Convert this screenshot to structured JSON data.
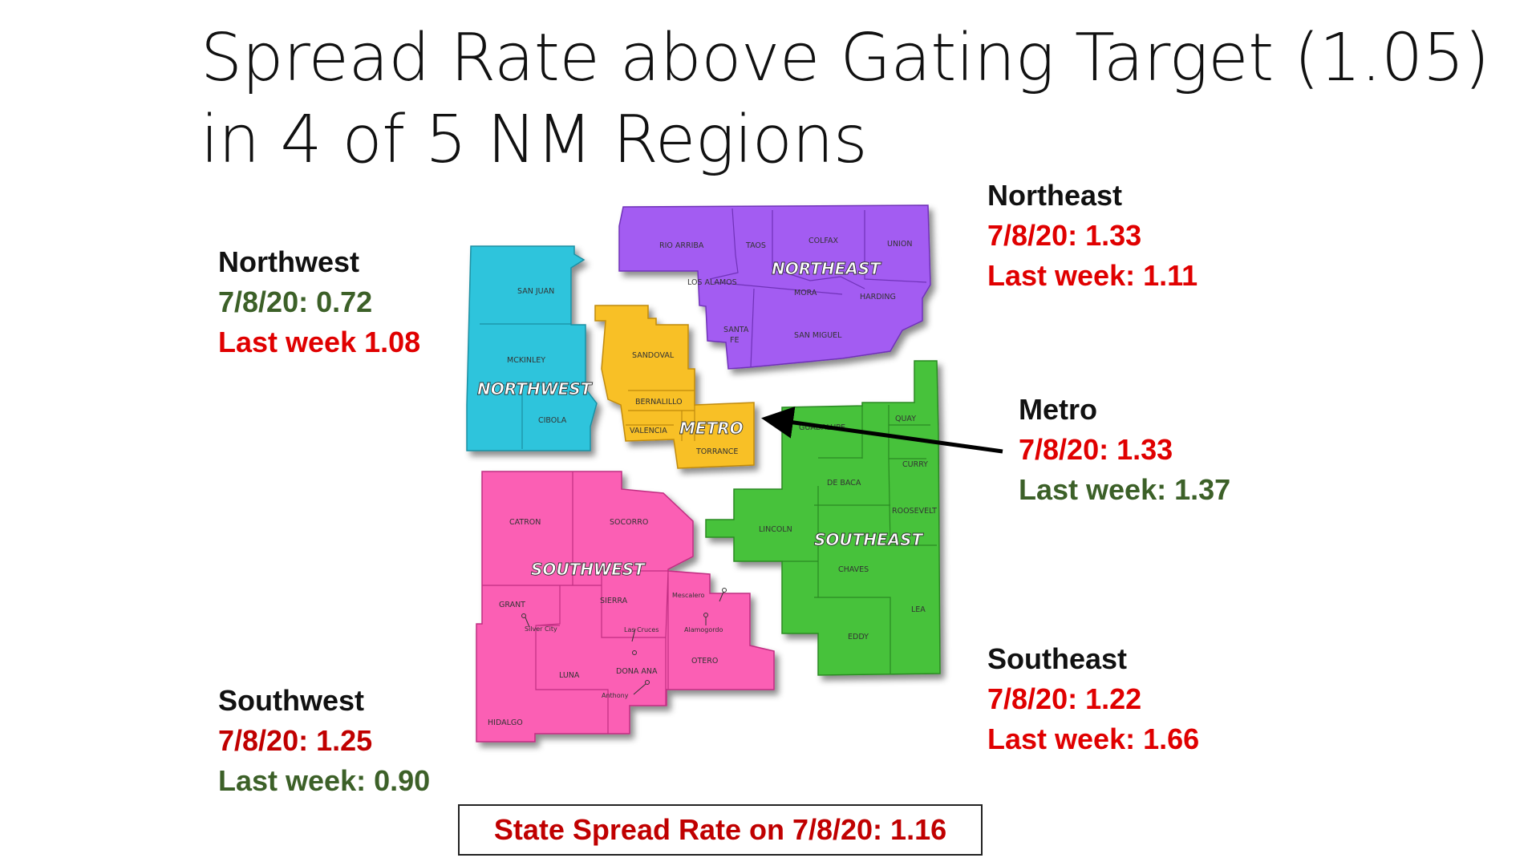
{
  "title": {
    "line1": "Spread Rate above Gating Target (1.05)",
    "line2": "in 4 of 5 NM Regions"
  },
  "regions": {
    "northwest": {
      "name": "Northwest",
      "current": "7/8/20: 0.72",
      "last_week": "Last week 1.08",
      "map_label": "NORTHWEST",
      "color": "#2ec4dc"
    },
    "northeast": {
      "name": "Northeast",
      "current": "7/8/20: 1.33",
      "last_week": "Last week: 1.11",
      "map_label": "NORTHEAST",
      "color": "#a35cf2"
    },
    "metro": {
      "name": "Metro",
      "current": "7/8/20: 1.33",
      "last_week": "Last week: 1.37",
      "map_label": "METRO",
      "color": "#f8c026"
    },
    "southeast": {
      "name": "Southeast",
      "current": "7/8/20: 1.22",
      "last_week": "Last week: 1.66",
      "map_label": "SOUTHEAST",
      "color": "#46c23a"
    },
    "southwest": {
      "name": "Southwest",
      "current": "7/8/20: 1.25",
      "last_week": "Last week: 0.90",
      "map_label": "SOUTHWEST",
      "color": "#fb5fb4"
    }
  },
  "counties": {
    "san_juan": "SAN JUAN",
    "mckinley": "MCKINLEY",
    "cibola": "CIBOLA",
    "rio_arriba": "RIO ARRIBA",
    "taos": "TAOS",
    "colfax": "COLFAX",
    "union": "UNION",
    "los_alamos": "LOS ALAMOS",
    "mora": "MORA",
    "harding": "HARDING",
    "santa": "SANTA",
    "fe": "FE",
    "san_miguel": "SAN MIGUEL",
    "sandoval": "SANDOVAL",
    "bernalillo": "BERNALILLO",
    "valencia": "VALENCIA",
    "torrance": "TORRANCE",
    "guadalupe": "GUADALUPE",
    "quay": "QUAY",
    "curry": "CURRY",
    "de_baca": "DE BACA",
    "roosevelt": "ROOSEVELT",
    "lincoln": "LINCOLN",
    "chaves": "CHAVES",
    "lea": "LEA",
    "eddy": "EDDY",
    "catron": "CATRON",
    "socorro": "SOCORRO",
    "grant": "GRANT",
    "sierra": "SIERRA",
    "luna": "LUNA",
    "dona_ana": "DONA ANA",
    "otero": "OTERO",
    "hidalgo": "HIDALGO"
  },
  "cities": {
    "mescalero": "Mescalero",
    "las_cruces": "Las Cruces",
    "alamogordo": "Alamogordo",
    "silver_city": "Silver City",
    "anthony": "Anthony"
  },
  "state": {
    "text": "State Spread Rate on 7/8/20: 1.16"
  },
  "colors": {
    "red": "#e00000",
    "dark_red": "#c00000",
    "green": "#3c6028",
    "arrow": "#000000"
  }
}
